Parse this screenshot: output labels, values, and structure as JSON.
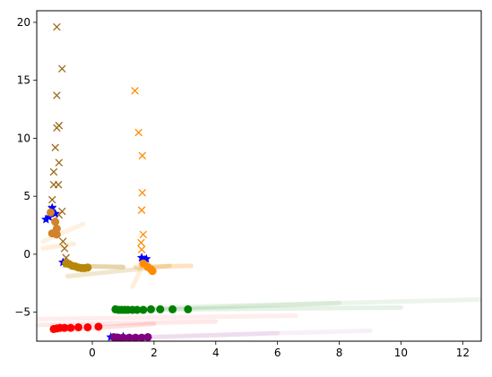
{
  "chart_data": {
    "type": "scatter",
    "title": "",
    "xlabel": "",
    "ylabel": "",
    "xlim": [
      -1.8,
      12.6
    ],
    "ylim": [
      -7.5,
      21
    ],
    "xticks": [
      0,
      2,
      4,
      6,
      8,
      10,
      12
    ],
    "yticks": [
      -5,
      0,
      5,
      10,
      15,
      20
    ],
    "grid": false,
    "legend": "none",
    "series": [
      {
        "color": "#9b6a1a",
        "marker": "x",
        "points": [
          [
            -1.15,
            19.6
          ],
          [
            -0.98,
            16.0
          ],
          [
            -1.15,
            13.7
          ],
          [
            -1.08,
            11.1
          ],
          [
            -1.15,
            10.9
          ],
          [
            -1.2,
            9.2
          ],
          [
            -1.08,
            7.9
          ],
          [
            -1.25,
            7.1
          ],
          [
            -1.1,
            6.0
          ],
          [
            -1.25,
            6.0
          ],
          [
            -1.3,
            4.7
          ],
          [
            -1.3,
            3.9
          ],
          [
            -0.98,
            3.7
          ],
          [
            -1.08,
            3.4
          ],
          [
            -0.95,
            1.1
          ],
          [
            -0.9,
            0.5
          ],
          [
            -0.85,
            -0.3
          ]
        ]
      },
      {
        "color": "#ff8c00",
        "marker": "x",
        "points": [
          [
            1.38,
            14.1
          ],
          [
            1.5,
            10.5
          ],
          [
            1.62,
            8.5
          ],
          [
            1.62,
            5.3
          ],
          [
            1.6,
            3.8
          ],
          [
            1.65,
            1.7
          ],
          [
            1.58,
            1.0
          ],
          [
            1.6,
            0.4
          ]
        ]
      },
      {
        "color": "#0000ff",
        "marker": "star",
        "points": [
          [
            -1.5,
            3.0
          ],
          [
            -1.4,
            3.2
          ],
          [
            -1.3,
            4.0
          ],
          [
            -1.2,
            3.5
          ],
          [
            -0.95,
            -0.7
          ],
          [
            -0.85,
            -0.8
          ],
          [
            1.6,
            -0.3
          ],
          [
            1.7,
            -0.5
          ],
          [
            1.75,
            -0.4
          ],
          [
            1.65,
            -0.6
          ],
          [
            0.6,
            -7.15
          ],
          [
            0.8,
            -7.2
          ],
          [
            1.0,
            -7.1
          ]
        ]
      },
      {
        "color": "#d2822a",
        "marker": "o",
        "points": [
          [
            -1.35,
            3.6
          ],
          [
            -1.2,
            2.8
          ],
          [
            -1.15,
            2.2
          ],
          [
            -1.3,
            1.8
          ],
          [
            -1.15,
            1.7
          ]
        ]
      },
      {
        "color": "#b8860b",
        "marker": "o",
        "points": [
          [
            -0.85,
            -0.8
          ],
          [
            -0.75,
            -0.85
          ],
          [
            -0.65,
            -1.0
          ],
          [
            -0.55,
            -1.05
          ],
          [
            -0.45,
            -1.15
          ],
          [
            -0.35,
            -1.2
          ],
          [
            -0.25,
            -1.2
          ],
          [
            -0.15,
            -1.15
          ]
        ]
      },
      {
        "color": "#ff8c00",
        "marker": "o",
        "points": [
          [
            1.65,
            -0.8
          ],
          [
            1.8,
            -1.1
          ],
          [
            1.9,
            -1.3
          ],
          [
            1.95,
            -1.45
          ]
        ]
      },
      {
        "color": "#008000",
        "marker": "o",
        "points": [
          [
            0.75,
            -4.75
          ],
          [
            0.85,
            -4.8
          ],
          [
            0.95,
            -4.8
          ],
          [
            1.05,
            -4.8
          ],
          [
            1.15,
            -4.8
          ],
          [
            1.3,
            -4.8
          ],
          [
            1.45,
            -4.8
          ],
          [
            1.65,
            -4.8
          ],
          [
            1.9,
            -4.75
          ],
          [
            2.2,
            -4.75
          ],
          [
            2.6,
            -4.75
          ],
          [
            3.1,
            -4.75
          ]
        ]
      },
      {
        "color": "#ff0000",
        "marker": "o",
        "points": [
          [
            -1.25,
            -6.45
          ],
          [
            -1.15,
            -6.4
          ],
          [
            -1.05,
            -6.35
          ],
          [
            -0.9,
            -6.35
          ],
          [
            -0.7,
            -6.35
          ],
          [
            -0.45,
            -6.3
          ],
          [
            -0.15,
            -6.3
          ],
          [
            0.2,
            -6.25
          ]
        ]
      },
      {
        "color": "#800080",
        "marker": "o",
        "points": [
          [
            0.7,
            -7.15
          ],
          [
            0.85,
            -7.2
          ],
          [
            1.0,
            -7.2
          ],
          [
            1.2,
            -7.2
          ],
          [
            1.4,
            -7.2
          ],
          [
            1.6,
            -7.2
          ],
          [
            1.8,
            -7.15
          ]
        ]
      }
    ],
    "trails": [
      {
        "color": "#ff8c00",
        "from": [
          -1.6,
          0.5
        ],
        "to": [
          -0.6,
          0.9
        ],
        "opacity": 0.15
      },
      {
        "color": "#ff8c00",
        "from": [
          -1.6,
          1.1
        ],
        "to": [
          -0.3,
          2.6
        ],
        "opacity": 0.12
      },
      {
        "color": "#b8860b",
        "from": [
          -0.8,
          -1.0
        ],
        "to": [
          1.0,
          -1.1
        ],
        "opacity": 0.35
      },
      {
        "color": "#b8860b",
        "from": [
          -0.8,
          -1.9
        ],
        "to": [
          2.5,
          -1.0
        ],
        "opacity": 0.2
      },
      {
        "color": "#ff8c00",
        "from": [
          1.4,
          -1.1
        ],
        "to": [
          3.2,
          -1.0
        ],
        "opacity": 0.25
      },
      {
        "color": "#ff8c00",
        "from": [
          1.3,
          -2.8
        ],
        "to": [
          1.7,
          -0.6
        ],
        "opacity": 0.15
      },
      {
        "color": "#008000",
        "from": [
          0.7,
          -4.7
        ],
        "to": [
          12.6,
          -3.9
        ],
        "opacity": 0.08
      },
      {
        "color": "#008000",
        "from": [
          0.7,
          -4.8
        ],
        "to": [
          10.0,
          -4.6
        ],
        "opacity": 0.1
      },
      {
        "color": "#008000",
        "from": [
          0.7,
          -4.9
        ],
        "to": [
          8.0,
          -4.2
        ],
        "opacity": 0.08
      },
      {
        "color": "#ff0000",
        "from": [
          -1.8,
          -5.6
        ],
        "to": [
          6.6,
          -5.3
        ],
        "opacity": 0.07
      },
      {
        "color": "#ff0000",
        "from": [
          -1.8,
          -6.1
        ],
        "to": [
          4.0,
          -5.8
        ],
        "opacity": 0.09
      },
      {
        "color": "#ff0000",
        "from": [
          -1.3,
          -6.6
        ],
        "to": [
          2.0,
          -6.0
        ],
        "opacity": 0.12
      },
      {
        "color": "#800080",
        "from": [
          0.6,
          -7.3
        ],
        "to": [
          6.0,
          -6.8
        ],
        "opacity": 0.08
      },
      {
        "color": "#800080",
        "from": [
          0.6,
          -7.2
        ],
        "to": [
          9.0,
          -6.6
        ],
        "opacity": 0.06
      }
    ]
  }
}
